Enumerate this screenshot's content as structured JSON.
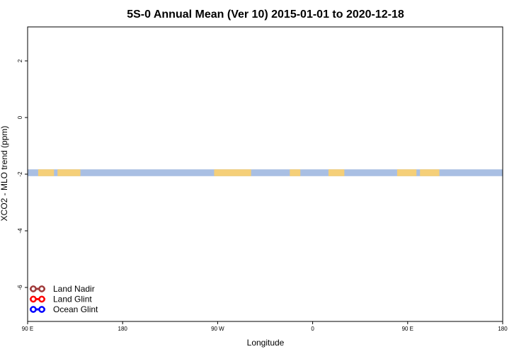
{
  "chart_data": {
    "type": "line",
    "title": "5S-0 Annual Mean (Ver 10)   2015-01-01 to 2020-12-18",
    "xlabel": "Longitude",
    "ylabel": "XCO2 - MLO trend (ppm)",
    "xlim": [
      -90,
      180
    ],
    "ylim": [
      -7.2,
      3.2
    ],
    "x_ticks": [
      {
        "value": -90,
        "label": "90 E"
      },
      {
        "value": -36,
        "label": "180"
      },
      {
        "value": 18,
        "label": "90 W"
      },
      {
        "value": 72,
        "label": "0"
      },
      {
        "value": 126,
        "label": "90 E"
      },
      {
        "value": 180,
        "label": "180"
      }
    ],
    "y_ticks": [
      {
        "value": -6,
        "label": "-6"
      },
      {
        "value": -4,
        "label": "-4"
      },
      {
        "value": -2,
        "label": "-2"
      },
      {
        "value": 0,
        "label": "0"
      },
      {
        "value": 2,
        "label": "2"
      }
    ],
    "legend_position": "bottom-left",
    "band": {
      "lower": -2.07,
      "upper": -1.83,
      "color": "#a9bfe3",
      "shaded_ranges_color": "#f5cf78",
      "shaded_ranges": [
        [
          -84,
          -75
        ],
        [
          -73,
          -60
        ],
        [
          16,
          37
        ],
        [
          59,
          65
        ],
        [
          81,
          90
        ],
        [
          120,
          131
        ],
        [
          133,
          144
        ]
      ]
    },
    "series": [
      {
        "name": "Land Nadir",
        "color": "#a03c3c",
        "points": []
      },
      {
        "name": "Land Glint",
        "color": "#ff0000",
        "points": []
      },
      {
        "name": "Ocean Glint",
        "color": "#0000ff",
        "points": []
      }
    ]
  }
}
